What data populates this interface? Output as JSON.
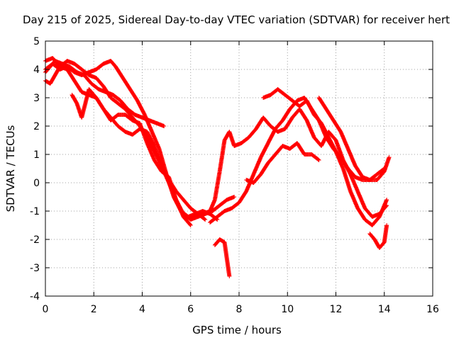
{
  "chart_data": {
    "type": "scatter",
    "title": "Day 215 of 2025, Sidereal Day-to-day VTEC variation (SDTVAR) for receiver hert",
    "xlabel": "GPS time / hours",
    "ylabel": "SDTVAR / TECUs",
    "xlim": [
      0,
      16
    ],
    "ylim": [
      -4,
      5
    ],
    "xticks": [
      "0",
      "2",
      "4",
      "6",
      "8",
      "10",
      "12",
      "14",
      "16"
    ],
    "yticks": [
      "-4",
      "-3",
      "-2",
      "-1",
      "0",
      "1",
      "2",
      "3",
      "4",
      "5"
    ],
    "grid": true,
    "marker": "+",
    "color": "#ff0000",
    "series": [
      {
        "name": "s1",
        "x": [
          0.0,
          0.3,
          0.6,
          0.9,
          1.2,
          1.5,
          1.8,
          2.1,
          2.4,
          2.7,
          2.9,
          3.2,
          3.5,
          3.8,
          4.1,
          4.4,
          4.7,
          5.0,
          5.3,
          5.6,
          5.9,
          6.2,
          6.5,
          6.8,
          7.1
        ],
        "y": [
          4.0,
          4.2,
          4.0,
          4.1,
          3.9,
          3.8,
          3.9,
          4.0,
          4.2,
          4.3,
          4.1,
          3.7,
          3.3,
          2.9,
          2.4,
          1.8,
          1.2,
          0.3,
          -0.5,
          -1.0,
          -1.2,
          -1.1,
          -1.0,
          -1.1,
          -1.3
        ]
      },
      {
        "name": "s2",
        "x": [
          0.0,
          0.3,
          0.6,
          0.9,
          1.2,
          1.5,
          1.8,
          2.1,
          2.4,
          2.7,
          3.0,
          3.3,
          3.6,
          3.9,
          4.2,
          4.5,
          4.8,
          5.1,
          5.4,
          5.7,
          6.0,
          6.3,
          6.6,
          6.9,
          7.2,
          7.5,
          7.8
        ],
        "y": [
          4.3,
          4.4,
          4.1,
          4.3,
          4.2,
          4.0,
          3.8,
          3.7,
          3.4,
          3.0,
          2.8,
          2.6,
          2.3,
          2.0,
          1.6,
          1.1,
          0.6,
          0.0,
          -0.6,
          -1.1,
          -1.3,
          -1.2,
          -1.1,
          -1.0,
          -0.8,
          -0.6,
          -0.5
        ]
      },
      {
        "name": "s3",
        "x": [
          0.0,
          0.2,
          0.4,
          0.7,
          1.0,
          1.3,
          1.6,
          1.9,
          2.2,
          2.5,
          2.8,
          3.1,
          3.4,
          3.7,
          4.0,
          4.3,
          4.6,
          4.9
        ],
        "y": [
          3.9,
          4.1,
          4.3,
          4.2,
          4.1,
          3.9,
          3.8,
          3.5,
          3.3,
          3.2,
          3.1,
          2.9,
          2.6,
          2.4,
          2.3,
          2.2,
          2.1,
          2.0
        ]
      },
      {
        "name": "s4",
        "x": [
          0.0,
          0.2,
          0.4,
          0.6,
          0.9,
          1.2,
          1.5,
          1.8,
          2.1,
          2.4,
          2.7,
          3.0,
          3.3,
          3.6,
          3.9,
          4.2,
          4.5,
          4.8,
          5.1,
          5.4,
          5.7,
          6.0,
          6.3,
          6.6
        ],
        "y": [
          3.6,
          3.5,
          3.8,
          4.1,
          4.0,
          3.6,
          3.2,
          3.1,
          3.0,
          2.6,
          2.3,
          2.0,
          1.8,
          1.7,
          1.9,
          1.8,
          1.3,
          0.6,
          0.1,
          -0.3,
          -0.6,
          -0.9,
          -1.1,
          -1.3
        ]
      },
      {
        "name": "s5",
        "x": [
          1.1,
          1.3,
          1.5,
          1.8,
          2.1,
          2.4,
          2.7,
          3.0,
          3.3,
          3.6,
          3.9,
          4.2,
          4.5,
          4.8,
          5.1,
          5.4,
          5.7,
          6.0
        ],
        "y": [
          3.1,
          2.8,
          2.3,
          3.3,
          3.0,
          2.6,
          2.2,
          2.4,
          2.4,
          2.2,
          2.1,
          1.4,
          0.8,
          0.4,
          0.2,
          -0.6,
          -1.2,
          -1.5
        ]
      },
      {
        "name": "s6",
        "x": [
          5.9,
          6.2,
          6.5,
          6.8,
          7.0,
          7.2,
          7.4,
          7.6,
          7.8,
          8.1,
          8.4,
          8.7,
          9.0,
          9.3,
          9.6,
          9.9,
          10.2,
          10.5,
          10.8,
          11.1,
          11.4,
          11.7,
          12.0,
          12.3,
          12.6,
          12.9,
          13.2,
          13.5,
          13.8,
          14.1
        ],
        "y": [
          -1.2,
          -1.2,
          -1.1,
          -1.0,
          -0.6,
          0.4,
          1.5,
          1.8,
          1.3,
          1.4,
          1.6,
          1.9,
          2.3,
          2.0,
          1.8,
          1.9,
          2.3,
          2.6,
          2.2,
          1.6,
          1.3,
          1.8,
          1.5,
          0.8,
          0.3,
          -0.3,
          -0.9,
          -1.2,
          -1.1,
          -0.8
        ]
      },
      {
        "name": "s7",
        "x": [
          6.8,
          7.1,
          7.4,
          7.7,
          8.0,
          8.3,
          8.6,
          8.9,
          9.2,
          9.5,
          9.8,
          10.1,
          10.4,
          10.7,
          11.0,
          11.3,
          11.6,
          11.9,
          12.2,
          12.5,
          12.8,
          13.1,
          13.4,
          13.7,
          14.0
        ],
        "y": [
          -1.4,
          -1.2,
          -1.0,
          -0.9,
          -0.7,
          -0.3,
          0.3,
          0.9,
          1.4,
          1.9,
          2.2,
          2.6,
          2.9,
          3.0,
          2.6,
          2.2,
          1.6,
          1.2,
          0.9,
          0.5,
          0.2,
          0.1,
          0.1,
          0.3,
          0.5
        ]
      },
      {
        "name": "s8",
        "x": [
          9.0,
          9.3,
          9.6,
          9.9,
          10.2,
          10.5,
          10.8,
          11.1,
          11.4,
          11.7,
          12.0,
          12.3,
          12.6,
          12.9,
          13.2,
          13.5,
          13.8,
          14.1
        ],
        "y": [
          3.0,
          3.1,
          3.3,
          3.1,
          2.9,
          2.7,
          2.9,
          2.4,
          2.1,
          1.6,
          1.1,
          0.5,
          -0.3,
          -0.9,
          -1.3,
          -1.5,
          -1.2,
          -0.6
        ]
      },
      {
        "name": "s9",
        "x": [
          11.3,
          11.6,
          11.9,
          12.2,
          12.5,
          12.8,
          13.1,
          13.4,
          13.7,
          14.0,
          14.2
        ],
        "y": [
          3.0,
          2.6,
          2.2,
          1.8,
          1.2,
          0.6,
          0.2,
          0.1,
          0.1,
          0.4,
          0.9
        ]
      },
      {
        "name": "s10",
        "x": [
          7.0,
          7.2,
          7.4,
          7.5,
          7.6
        ],
        "y": [
          -2.2,
          -2.0,
          -2.1,
          -2.7,
          -3.3
        ]
      },
      {
        "name": "s11",
        "x": [
          13.4,
          13.6,
          13.8,
          14.0,
          14.1
        ],
        "y": [
          -1.8,
          -2.0,
          -2.3,
          -2.1,
          -1.5
        ]
      },
      {
        "name": "s12",
        "x": [
          8.3,
          8.6,
          8.9,
          9.2,
          9.5,
          9.8,
          10.1,
          10.4,
          10.7,
          11.0,
          11.3
        ],
        "y": [
          0.1,
          0.0,
          0.3,
          0.7,
          1.0,
          1.3,
          1.2,
          1.4,
          1.0,
          1.0,
          0.8
        ]
      }
    ]
  }
}
